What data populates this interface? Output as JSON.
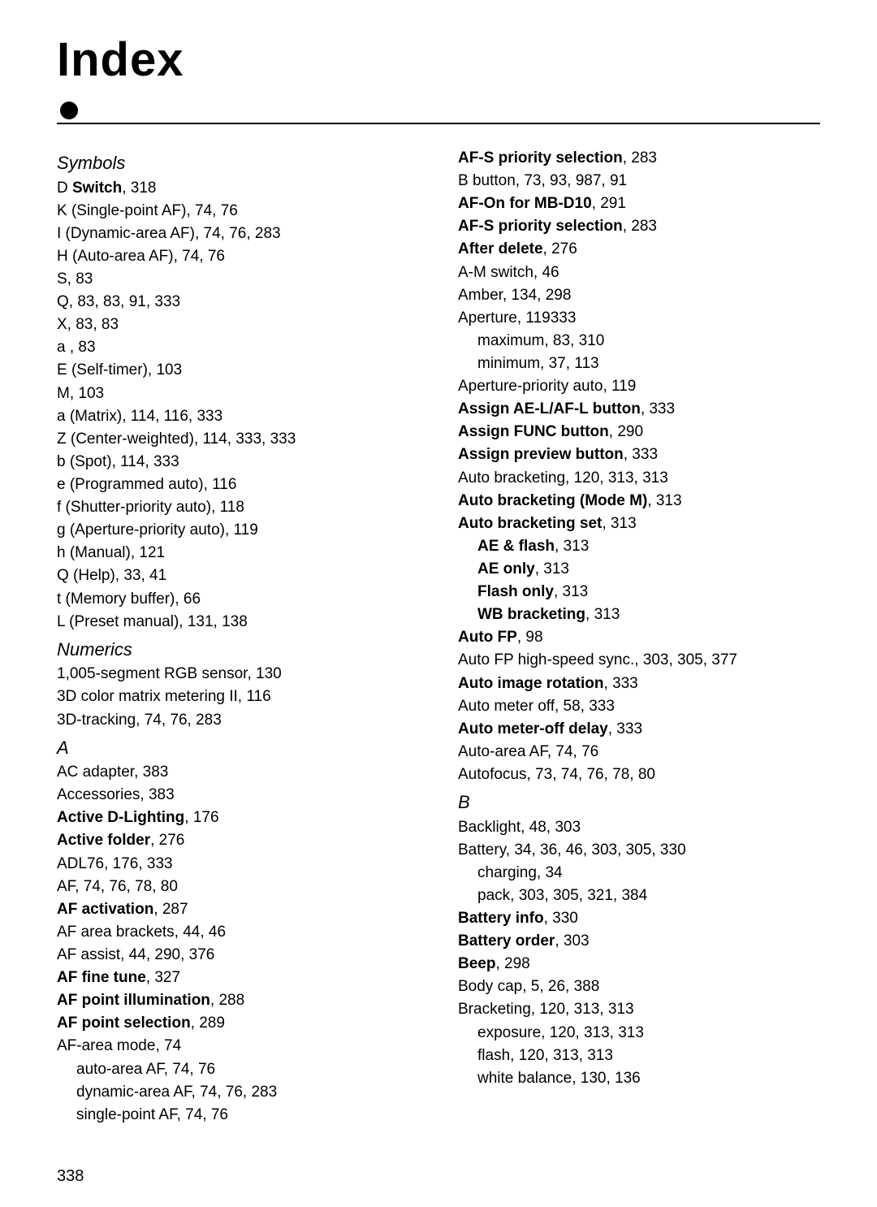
{
  "title": "Index",
  "pageNumber": "338",
  "left": {
    "symbolsHead": "Symbols",
    "s1": {
      "a": "D ",
      "b": "Switch",
      "c": ", 318"
    },
    "s2": "K  (Single-point AF), 74, 76",
    "s3": "I  (Dynamic-area AF), 74, 76, 283",
    "s4": "H  (Auto-area AF), 74, 76",
    "s5": "S, 83",
    "s6": "Q, 83, 83, 91, 333",
    "s7": "X, 83, 83",
    "s8": "a , 83",
    "s9": "E  (Self-timer), 103",
    "s10": "M, 103",
    "s11": "a  (Matrix), 114, 116, 333",
    "s12": "Z  (Center-weighted), 114, 333, 333",
    "s13": "b  (Spot), 114, 333",
    "s14": "e (Programmed auto), 116",
    "s15": "f  (Shutter-priority auto), 118",
    "s16": "g (Aperture-priority auto), 119",
    "s17": "h (Manual), 121",
    "s18": "Q (Help), 33, 41",
    "s19": "t  (Memory buffer), 66",
    "s20": "L      (Preset manual), 131, 138",
    "numericsHead": "Numerics",
    "n1": "1,005-segment RGB sensor, 130",
    "n2": "3D color matrix metering II, 116",
    "n3": "3D-tracking, 74, 76, 283",
    "aHead": "A",
    "a1": "AC adapter, 383",
    "a2": "Accessories, 383",
    "a3": {
      "a": "Active D-Lighting",
      "b": ", 176"
    },
    "a4": {
      "a": "Active folder",
      "b": ", 276"
    },
    "a5": "ADL76, 176, 333",
    "a6": "AF, 74, 76, 78, 80",
    "a7": {
      "a": "AF activation",
      "b": ", 287"
    },
    "a8": "AF area brackets, 44, 46",
    "a9": "AF assist, 44, 290, 376",
    "a10": {
      "a": "AF fine tune",
      "b": ", 327"
    },
    "a11": {
      "a": "AF point illumination",
      "b": ", 288"
    },
    "a12": {
      "a": "AF point selection",
      "b": ", 289"
    },
    "a13": "AF-area mode, 74",
    "a14": "auto-area AF, 74, 76",
    "a15": "dynamic-area AF, 74, 76, 283",
    "a16": "single-point AF, 74, 76"
  },
  "right": {
    "r1": {
      "a": "AF-S priority selection",
      "b": ", 283"
    },
    "r2": "B        button, 73, 93, 987, 91",
    "r3": {
      "a": "AF-On for MB-D10",
      "b": ", 291"
    },
    "r4": {
      "a": "AF-S priority selection",
      "b": ", 283"
    },
    "r5": {
      "a": "After delete",
      "b": ", 276"
    },
    "r6": "A-M switch, 46",
    "r7": "Amber, 134, 298",
    "r8": "Aperture, 119333",
    "r9": "maximum, 83, 310",
    "r10": "minimum, 37, 113",
    "r11": "Aperture-priority auto, 119",
    "r12": {
      "a": "Assign AE-L/AF-L button",
      "b": ", 333"
    },
    "r13": {
      "a": "Assign FUNC button",
      "b": ", 290"
    },
    "r14": {
      "a": "Assign preview button",
      "b": ", 333"
    },
    "r15": "Auto bracketing, 120, 313, 313",
    "r16": {
      "a": "Auto bracketing (Mode M)",
      "b": ", 313"
    },
    "r17": {
      "a": "Auto bracketing set",
      "b": ", 313"
    },
    "r18": {
      "a": "AE & flash",
      "b": ", 313"
    },
    "r19": {
      "a": "AE only",
      "b": ", 313"
    },
    "r20": {
      "a": "Flash only",
      "b": ", 313"
    },
    "r21": {
      "a": "WB bracketing",
      "b": ", 313"
    },
    "r22": {
      "a": "Auto FP",
      "b": ", 98"
    },
    "r23": "Auto FP high-speed sync., 303, 305, 377",
    "r24": {
      "a": "Auto image rotation",
      "b": ", 333"
    },
    "r25": "Auto meter off, 58, 333",
    "r26": {
      "a": "Auto meter-off delay",
      "b": ", 333"
    },
    "r27": "Auto-area AF, 74, 76",
    "r28": "Autofocus, 73, 74, 76, 78, 80",
    "bHead": "B",
    "b1": "Backlight, 48, 303",
    "b2": "Battery, 34, 36, 46, 303, 305, 330",
    "b3": "charging, 34",
    "b4": "pack, 303, 305, 321, 384",
    "b5": {
      "a": "Battery info",
      "b": ", 330"
    },
    "b6": {
      "a": "Battery order",
      "b": ", 303"
    },
    "b7": {
      "a": "Beep",
      "b": ", 298"
    },
    "b8": "Body cap, 5, 26, 388",
    "b9": "Bracketing, 120, 313, 313",
    "b10": "exposure, 120, 313, 313",
    "b11": "flash, 120, 313, 313",
    "b12": "white balance, 130, 136"
  }
}
